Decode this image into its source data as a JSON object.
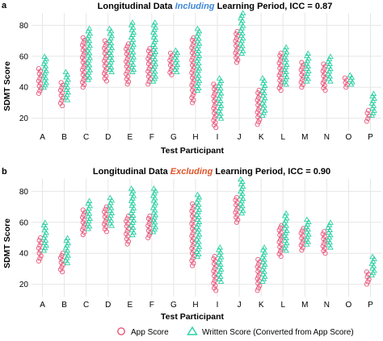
{
  "colors": {
    "app": "#e8557a",
    "written": "#2ad1a3",
    "including": "#3f87d8",
    "excluding": "#e0542a",
    "grid": "#e6e6e6"
  },
  "legend": {
    "app_label": "App Score",
    "written_label": "Written Score (Converted from App Score)"
  },
  "chart_data": [
    {
      "type": "scatter",
      "panel": "a",
      "title_prefix": "Longitudinal Data ",
      "title_highlight": "Including",
      "title_suffix": " Learning Period, ICC = 0.87",
      "xlabel": "Test Participant",
      "ylabel": "SDMT Score",
      "categories": [
        "A",
        "B",
        "C",
        "D",
        "E",
        "F",
        "G",
        "H",
        "I",
        "J",
        "K",
        "L",
        "M",
        "N",
        "O",
        "P"
      ],
      "yticks": [
        20,
        40,
        60,
        80
      ],
      "ylim": [
        12,
        88
      ],
      "grid": true,
      "series": [
        {
          "name": "App Score",
          "marker": "circle",
          "ranges": [
            [
              36,
              52
            ],
            [
              28,
              43
            ],
            [
              40,
              72
            ],
            [
              44,
              70
            ],
            [
              42,
              68
            ],
            [
              42,
              65
            ],
            [
              48,
              62
            ],
            [
              30,
              72
            ],
            [
              14,
              42
            ],
            [
              56,
              76
            ],
            [
              16,
              38
            ],
            [
              38,
              62
            ],
            [
              40,
              56
            ],
            [
              38,
              55
            ],
            [
              40,
              46
            ],
            [
              18,
              25
            ]
          ]
        },
        {
          "name": "Written Score (Converted from App Score)",
          "marker": "triangle",
          "ranges": [
            [
              40,
              60
            ],
            [
              32,
              50
            ],
            [
              45,
              78
            ],
            [
              50,
              78
            ],
            [
              50,
              82
            ],
            [
              44,
              82
            ],
            [
              50,
              64
            ],
            [
              38,
              78
            ],
            [
              20,
              46
            ],
            [
              62,
              88
            ],
            [
              22,
              46
            ],
            [
              42,
              66
            ],
            [
              44,
              62
            ],
            [
              44,
              60
            ],
            [
              42,
              48
            ],
            [
              22,
              36
            ]
          ]
        }
      ]
    },
    {
      "type": "scatter",
      "panel": "b",
      "title_prefix": "Longitudinal Data ",
      "title_highlight": "Excluding",
      "title_suffix": " Learning Period, ICC = 0.90",
      "xlabel": "Test Participant",
      "ylabel": "SDMT Score",
      "categories": [
        "A",
        "B",
        "C",
        "D",
        "E",
        "F",
        "G",
        "H",
        "I",
        "J",
        "K",
        "L",
        "M",
        "N",
        "O",
        "P"
      ],
      "yticks": [
        20,
        40,
        60,
        80
      ],
      "ylim": [
        12,
        88
      ],
      "grid": true,
      "series": [
        {
          "name": "App Score",
          "marker": "circle",
          "ranges": [
            [
              35,
              50
            ],
            [
              28,
              40
            ],
            [
              52,
              68
            ],
            [
              54,
              70
            ],
            [
              46,
              64
            ],
            [
              50,
              64
            ],
            [],
            [
              32,
              72
            ],
            [
              16,
              38
            ],
            [
              60,
              76
            ],
            [
              16,
              36
            ],
            [
              38,
              58
            ],
            [
              42,
              56
            ],
            [
              40,
              54
            ],
            [],
            [
              20,
              28
            ]
          ]
        },
        {
          "name": "Written Score (Converted from App Score)",
          "marker": "triangle",
          "ranges": [
            [
              42,
              60
            ],
            [
              34,
              50
            ],
            [
              56,
              74
            ],
            [
              58,
              76
            ],
            [
              52,
              82
            ],
            [
              54,
              82
            ],
            [],
            [
              38,
              78
            ],
            [
              22,
              44
            ],
            [
              66,
              88
            ],
            [
              22,
              44
            ],
            [
              42,
              66
            ],
            [
              46,
              62
            ],
            [
              44,
              60
            ],
            [],
            [
              26,
              38
            ]
          ]
        }
      ]
    }
  ]
}
